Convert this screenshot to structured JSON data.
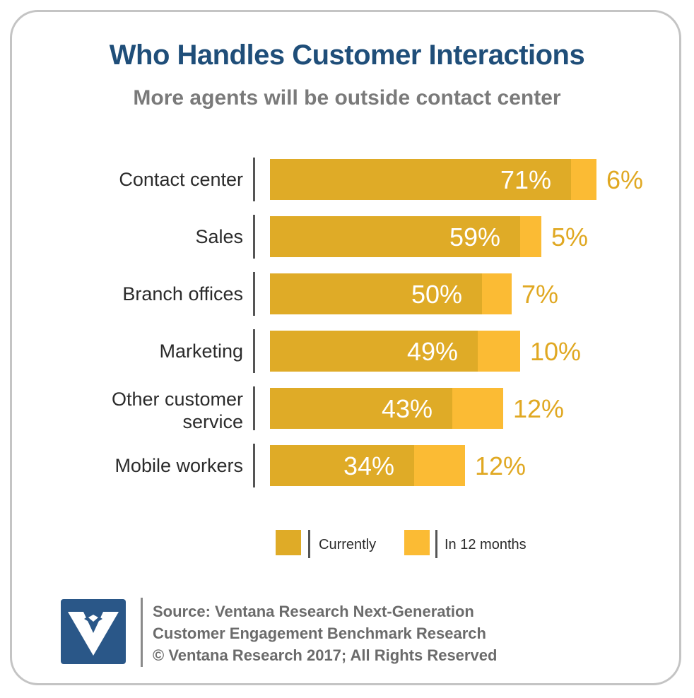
{
  "title": "Who Handles Customer Interactions",
  "subtitle": "More agents will be outside contact center",
  "colors": {
    "currently": "#dfab27",
    "in12": "#fbbb34",
    "title": "#1f4e79"
  },
  "chart_data": {
    "type": "bar",
    "orientation": "horizontal",
    "stacked": true,
    "categories": [
      [
        "Contact center"
      ],
      [
        "Sales"
      ],
      [
        "Branch offices"
      ],
      [
        "Marketing"
      ],
      [
        "Other customer",
        "service"
      ],
      [
        "Mobile workers"
      ]
    ],
    "series": [
      {
        "name": "Currently",
        "values": [
          71,
          59,
          50,
          49,
          43,
          34
        ],
        "labels": [
          "71%",
          "59%",
          "50%",
          "49%",
          "43%",
          "34%"
        ]
      },
      {
        "name": "In 12 months",
        "values": [
          6,
          5,
          7,
          10,
          12,
          12
        ],
        "labels": [
          "6%",
          "5%",
          "7%",
          "10%",
          "12%",
          "12%"
        ]
      }
    ],
    "legend_position": "bottom"
  },
  "source": {
    "line1": "Source: Ventana Research Next-Generation",
    "line2": "Customer Engagement Benchmark Research",
    "line3": "© Ventana Research 2017; All Rights Reserved"
  },
  "logo_icon": "ventana-v-icon"
}
